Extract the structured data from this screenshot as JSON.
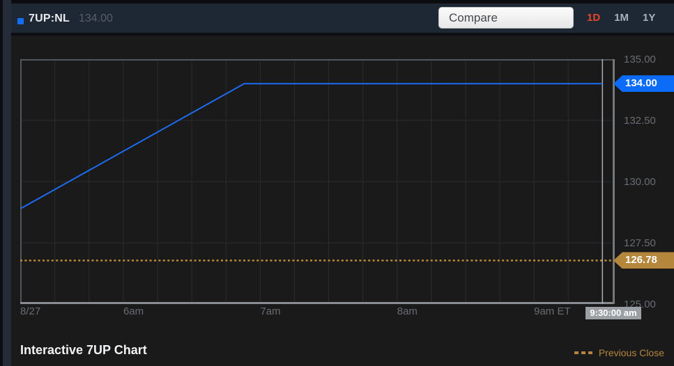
{
  "header": {
    "symbol": "7UP:NL",
    "price": "134.00",
    "compare_label": "Compare",
    "tabs": [
      {
        "label": "1D",
        "active": true
      },
      {
        "label": "1M",
        "active": false
      },
      {
        "label": "1Y",
        "active": false
      }
    ]
  },
  "chart_data": {
    "type": "line",
    "title": "Interactive 7UP Chart",
    "x_axis": {
      "unit": "minutes_after_midnight_ET",
      "min": 314.8,
      "max": 575.4,
      "ticks": [
        {
          "m": 314.8,
          "label": "8/27"
        },
        {
          "m": 360,
          "label": "6am"
        },
        {
          "m": 420,
          "label": "7am"
        },
        {
          "m": 480,
          "label": "8am"
        },
        {
          "m": 540,
          "label": "9am ET"
        }
      ],
      "minor_grid_start": 330,
      "minor_grid_end": 570,
      "minor_grid_step_min": 15
    },
    "y_axis": {
      "min": 125.0,
      "max": 135.0,
      "ticks": [
        {
          "v": 135.0,
          "label": "135.00"
        },
        {
          "v": 132.5,
          "label": "132.50"
        },
        {
          "v": 130.0,
          "label": "130.00"
        },
        {
          "v": 127.5,
          "label": "127.50"
        },
        {
          "v": 125.0,
          "label": "125.00"
        }
      ],
      "grid_values": [
        132.5,
        130.0,
        127.5
      ]
    },
    "series": [
      {
        "name": "7UP:NL",
        "color": "#1d6cf2",
        "points": [
          {
            "m": 315,
            "v": 128.9
          },
          {
            "m": 413,
            "v": 134.0
          },
          {
            "m": 570,
            "v": 134.0
          }
        ]
      }
    ],
    "last_price": {
      "value": 134.0,
      "label": "134.00",
      "tag_color": "#0b6cf7"
    },
    "previous_close": {
      "value": 126.78,
      "label": "126.78",
      "tag_color": "#b5873c",
      "line_color": "#bd8a35"
    },
    "crosshair": {
      "m": 570,
      "time_label": "9:30:00 am"
    },
    "grid": true,
    "legend_position": "bottom-right"
  },
  "footer": {
    "title": "Interactive 7UP Chart",
    "legend_label": "Previous Close"
  },
  "colors": {
    "top_bar_bg": "#1e2734",
    "chart_bg": "#1a1a1b",
    "gridline": "#2b2c2e",
    "axis_text": "#696d72",
    "price_line_blue": "#1d6cf2",
    "last_price_tag_blue": "#0b6cf7",
    "previous_close_orange": "#bd8a35",
    "active_range_tab_red": "#e8442a",
    "crosshair_gray": "#aaaeb2"
  }
}
